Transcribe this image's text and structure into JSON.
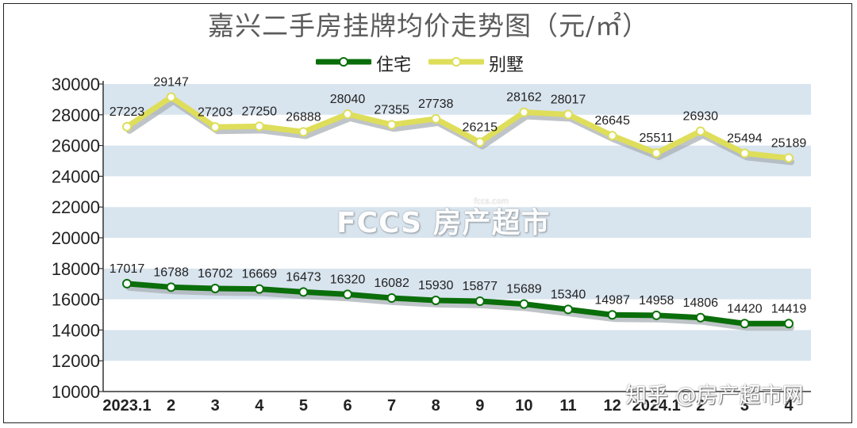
{
  "chart_data": {
    "type": "line",
    "title": "嘉兴二手房挂牌均价走势图（元/㎡）",
    "categories": [
      "2023.1",
      "2",
      "3",
      "4",
      "5",
      "6",
      "7",
      "8",
      "9",
      "10",
      "11",
      "12",
      "2024.1",
      "2",
      "3",
      "4"
    ],
    "series": [
      {
        "name": "住宅",
        "color": "#0a6e0a",
        "values": [
          17017,
          16788,
          16702,
          16669,
          16473,
          16320,
          16082,
          15930,
          15877,
          15689,
          15340,
          14987,
          14958,
          14806,
          14420,
          14419
        ]
      },
      {
        "name": "别墅",
        "color": "#dede5a",
        "values": [
          27223,
          29147,
          27203,
          27250,
          26888,
          28040,
          27355,
          27738,
          26215,
          28162,
          28017,
          26645,
          25511,
          26930,
          25494,
          25189
        ]
      }
    ],
    "ylim": [
      10000,
      30000
    ],
    "yticks": [
      10000,
      12000,
      14000,
      16000,
      18000,
      20000,
      22000,
      24000,
      26000,
      28000,
      30000
    ],
    "legend_position": "top-center",
    "grid": "alternating horizontal bands"
  },
  "watermark": {
    "logo_text": "FCCS 房产超市",
    "site": "fccs.com"
  },
  "credit": "知乎 @房产超市网"
}
